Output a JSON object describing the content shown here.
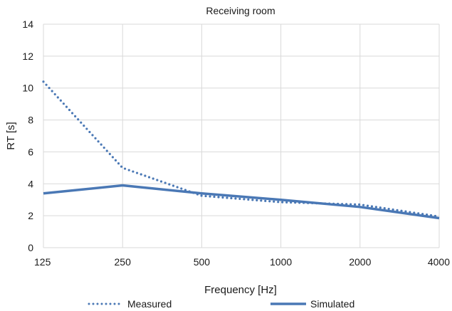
{
  "chart_data": {
    "type": "line",
    "title": "Receiving room",
    "xlabel": "Frequency [Hz]",
    "ylabel": "RT [s]",
    "categories": [
      "125",
      "250",
      "500",
      "1000",
      "2000",
      "4000"
    ],
    "ylim": [
      0,
      14
    ],
    "yticks": [
      0,
      2,
      4,
      6,
      8,
      10,
      12,
      14
    ],
    "grid": true,
    "legend_position": "bottom",
    "colors": {
      "series": "#4a78b5",
      "grid": "#d9d9d9"
    },
    "series": [
      {
        "name": "Measured",
        "style": "dotted",
        "values": [
          10.4,
          5.0,
          3.25,
          2.85,
          2.7,
          1.95
        ]
      },
      {
        "name": "Simulated",
        "style": "solid",
        "values": [
          3.4,
          3.9,
          3.4,
          3.0,
          2.55,
          1.85
        ]
      }
    ]
  }
}
